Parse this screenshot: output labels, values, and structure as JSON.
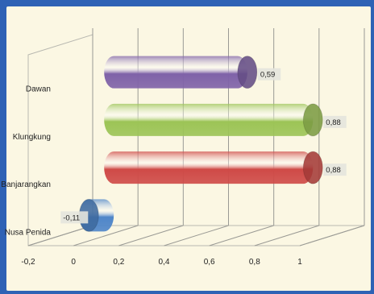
{
  "chart_data": {
    "type": "bar",
    "orientation": "horizontal",
    "style": "3d-cylinder",
    "categories": [
      "Nusa Penida",
      "Banjarangkan",
      "Klungkung",
      "Dawan"
    ],
    "values": [
      -0.11,
      0.88,
      0.88,
      0.59
    ],
    "data_labels": [
      "-0,11",
      "0,88",
      "0,88",
      "0,59"
    ],
    "bar_colors": [
      "#4f86c9",
      "#cf4a47",
      "#9cc456",
      "#7f62a8"
    ],
    "xlim": [
      -0.2,
      1
    ],
    "x_ticks": [
      -0.2,
      0,
      0.2,
      0.4,
      0.6,
      0.8,
      1
    ],
    "x_tick_labels": [
      "-0,2",
      "0",
      "0,2",
      "0,4",
      "0,6",
      "0,8",
      "1"
    ],
    "grid": true,
    "legend": "none"
  }
}
